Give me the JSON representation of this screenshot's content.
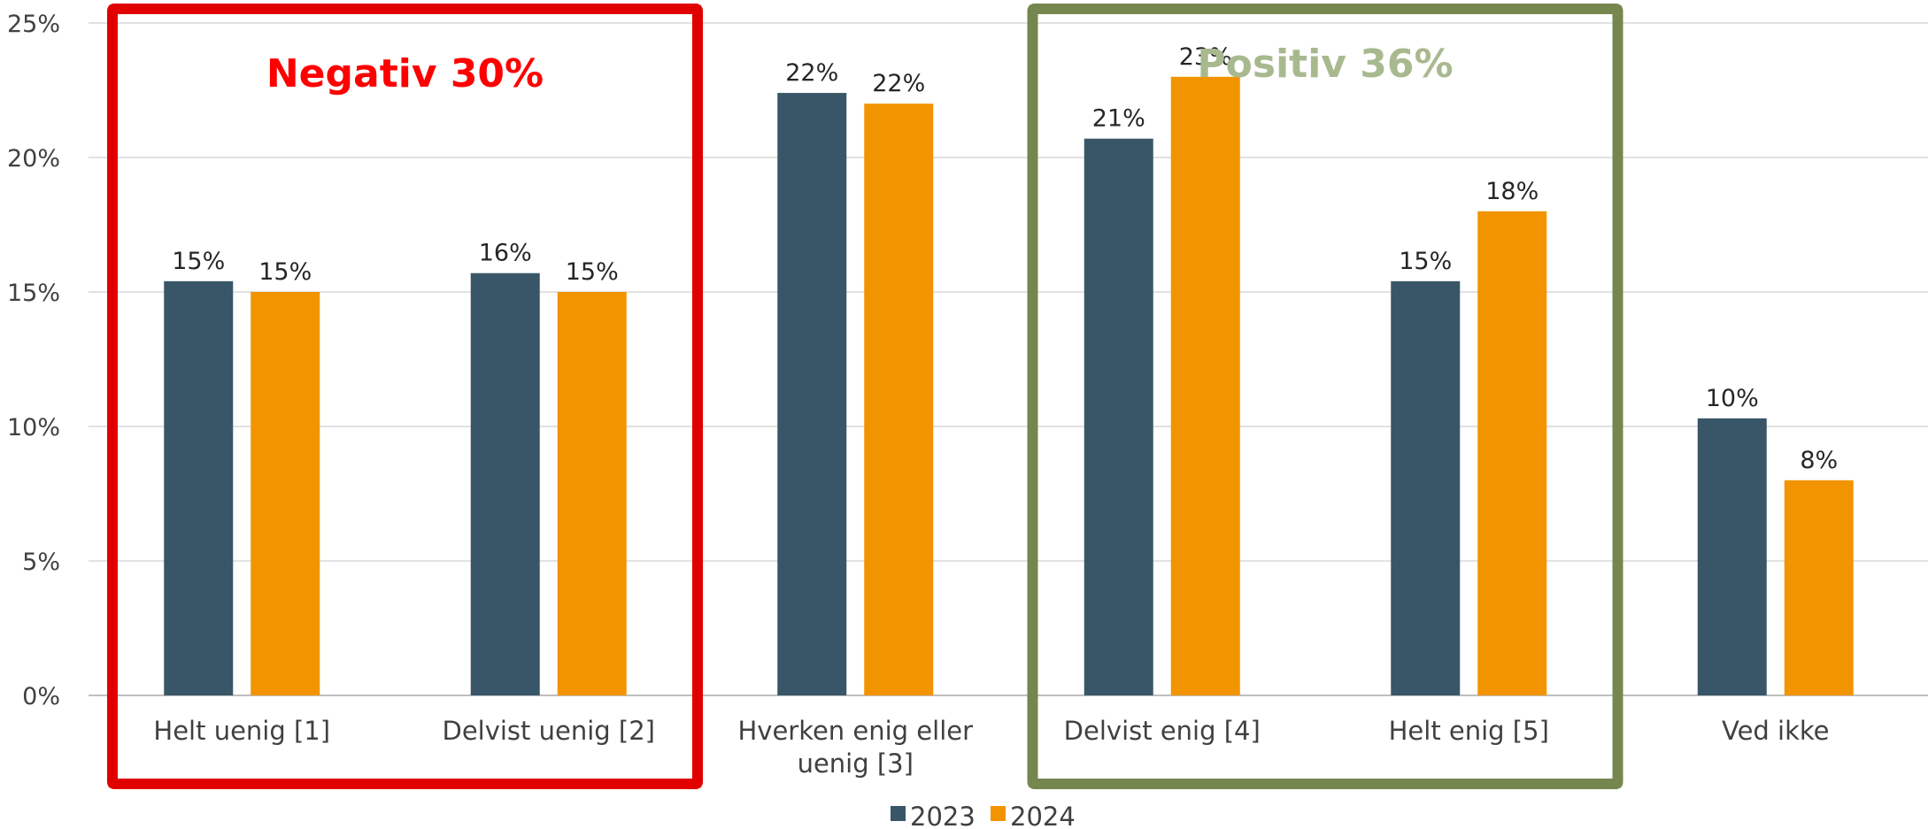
{
  "chart_data": {
    "type": "bar",
    "categories": [
      [
        "Helt uenig [1]"
      ],
      [
        "Delvist uenig [2]"
      ],
      [
        "Hverken enig eller",
        "uenig [3]"
      ],
      [
        "Delvist enig [4]"
      ],
      [
        "Helt enig [5]"
      ],
      [
        "Ved ikke"
      ]
    ],
    "series": [
      {
        "name": "2023",
        "color": "#385668",
        "values": [
          15.4,
          15.7,
          22.4,
          20.7,
          15.4,
          10.3
        ],
        "labels": [
          "15%",
          "16%",
          "22%",
          "21%",
          "15%",
          "10%"
        ]
      },
      {
        "name": "2024",
        "color": "#F29400",
        "values": [
          15,
          15,
          22,
          23,
          18,
          8
        ],
        "labels": [
          "15%",
          "15%",
          "22%",
          "23%",
          "18%",
          "8%"
        ]
      }
    ],
    "ylim": [
      0,
      25
    ],
    "yticks": [
      0,
      5,
      10,
      15,
      20,
      25
    ],
    "ytick_labels": [
      "0%",
      "5%",
      "10%",
      "15%",
      "20%",
      "25%"
    ],
    "grid": true,
    "legend_position": "bottom-center",
    "annotations": [
      {
        "text": "Negativ 30%",
        "color": "#FF0000",
        "border_color": "#E00000",
        "spans_categories": [
          0,
          1
        ]
      },
      {
        "text": "Positiv 36%",
        "color": "#A9B98F",
        "border_color": "#76864F",
        "spans_categories": [
          3,
          4
        ]
      }
    ]
  }
}
